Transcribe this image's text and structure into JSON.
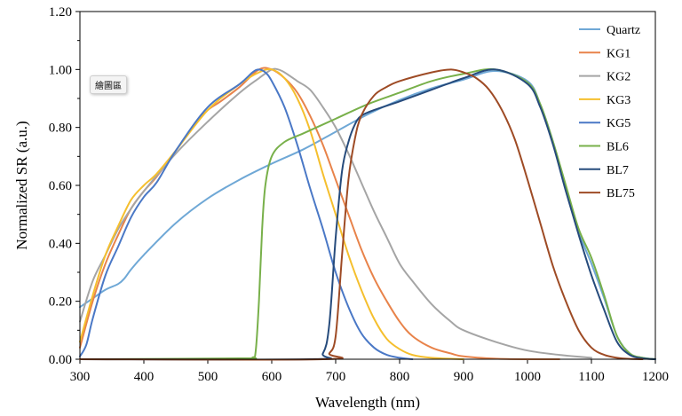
{
  "chart_data": {
    "type": "line",
    "title": "",
    "xlabel": "Wavelength (nm)",
    "ylabel": "Normalized SR (a.u.)",
    "xlim": [
      300,
      1200
    ],
    "ylim": [
      0,
      1.2
    ],
    "xticks": [
      300,
      400,
      500,
      600,
      700,
      800,
      900,
      1000,
      1100,
      1200
    ],
    "yticks": [
      "0.00",
      "0.20",
      "0.40",
      "0.60",
      "0.80",
      "1.00",
      "1.20"
    ],
    "legend_position": "top-right",
    "tag_label": "繪圖區",
    "series": [
      {
        "name": "Quartz",
        "color": "#6fa8d6",
        "x": [
          300,
          320,
          340,
          360,
          370,
          380,
          400,
          450,
          500,
          550,
          600,
          650,
          700,
          750,
          800,
          850,
          900,
          950,
          1000,
          1020,
          1040,
          1060,
          1080,
          1100,
          1120,
          1140,
          1160,
          1180,
          1200
        ],
        "y": [
          0.18,
          0.21,
          0.24,
          0.26,
          0.28,
          0.31,
          0.36,
          0.47,
          0.555,
          0.62,
          0.675,
          0.725,
          0.785,
          0.845,
          0.895,
          0.935,
          0.965,
          0.995,
          0.96,
          0.88,
          0.75,
          0.59,
          0.44,
          0.33,
          0.21,
          0.08,
          0.02,
          0.005,
          0.0
        ]
      },
      {
        "name": "KG1",
        "color": "#e8834a",
        "x": [
          300,
          320,
          340,
          360,
          380,
          400,
          420,
          450,
          480,
          500,
          520,
          550,
          580,
          600,
          620,
          640,
          660,
          680,
          700,
          720,
          740,
          760,
          780,
          800,
          820,
          850,
          880,
          900,
          950,
          1000,
          1050
        ],
        "y": [
          0.04,
          0.2,
          0.33,
          0.43,
          0.52,
          0.58,
          0.63,
          0.72,
          0.81,
          0.86,
          0.89,
          0.94,
          1.0,
          1.0,
          0.97,
          0.92,
          0.84,
          0.74,
          0.62,
          0.5,
          0.38,
          0.28,
          0.2,
          0.13,
          0.08,
          0.04,
          0.02,
          0.01,
          0.002,
          0.0,
          0.0
        ]
      },
      {
        "name": "KG2",
        "color": "#a5a5a5",
        "x": [
          300,
          320,
          340,
          360,
          380,
          400,
          450,
          500,
          550,
          580,
          600,
          610,
          620,
          640,
          660,
          680,
          700,
          720,
          740,
          760,
          780,
          800,
          820,
          850,
          880,
          900,
          950,
          1000,
          1050,
          1100
        ],
        "y": [
          0.13,
          0.27,
          0.36,
          0.45,
          0.52,
          0.58,
          0.71,
          0.82,
          0.92,
          0.97,
          1.0,
          1.0,
          0.99,
          0.96,
          0.93,
          0.87,
          0.8,
          0.71,
          0.61,
          0.51,
          0.42,
          0.33,
          0.27,
          0.19,
          0.13,
          0.1,
          0.06,
          0.03,
          0.015,
          0.005
        ]
      },
      {
        "name": "KG3",
        "color": "#f5bf2e",
        "x": [
          300,
          320,
          340,
          360,
          380,
          400,
          420,
          450,
          500,
          550,
          580,
          600,
          620,
          640,
          660,
          680,
          700,
          720,
          740,
          760,
          780,
          800,
          820,
          850,
          900
        ],
        "y": [
          0.06,
          0.22,
          0.36,
          0.46,
          0.55,
          0.6,
          0.64,
          0.72,
          0.86,
          0.95,
          0.99,
          1.0,
          0.97,
          0.9,
          0.79,
          0.64,
          0.5,
          0.36,
          0.24,
          0.14,
          0.07,
          0.035,
          0.015,
          0.005,
          0.0
        ]
      },
      {
        "name": "KG5",
        "color": "#4a78c6",
        "x": [
          300,
          310,
          320,
          340,
          360,
          380,
          400,
          420,
          450,
          500,
          550,
          570,
          580,
          590,
          600,
          620,
          640,
          660,
          680,
          700,
          720,
          740,
          760,
          780,
          800,
          820
        ],
        "y": [
          0.01,
          0.05,
          0.14,
          0.29,
          0.39,
          0.49,
          0.56,
          0.61,
          0.72,
          0.87,
          0.95,
          0.99,
          1.0,
          0.99,
          0.96,
          0.87,
          0.74,
          0.59,
          0.45,
          0.3,
          0.18,
          0.09,
          0.04,
          0.015,
          0.005,
          0.0
        ]
      },
      {
        "name": "BL6",
        "color": "#78b04a",
        "x": [
          300,
          550,
          570,
          575,
          580,
          585,
          590,
          600,
          620,
          650,
          700,
          750,
          800,
          850,
          900,
          950,
          1000,
          1020,
          1040,
          1060,
          1080,
          1100,
          1120,
          1140,
          1160,
          1180,
          1200
        ],
        "y": [
          0.0,
          0.003,
          0.006,
          0.03,
          0.2,
          0.45,
          0.6,
          0.7,
          0.75,
          0.78,
          0.83,
          0.88,
          0.92,
          0.96,
          0.985,
          1.0,
          0.955,
          0.88,
          0.75,
          0.6,
          0.45,
          0.35,
          0.22,
          0.08,
          0.02,
          0.005,
          0.0
        ]
      },
      {
        "name": "BL7",
        "color": "#264b7c",
        "x": [
          300,
          660,
          680,
          690,
          700,
          710,
          720,
          730,
          740,
          760,
          800,
          850,
          900,
          950,
          1000,
          1020,
          1040,
          1060,
          1080,
          1100,
          1120,
          1140,
          1160,
          1180,
          1200
        ],
        "y": [
          0.0,
          0.0,
          0.02,
          0.12,
          0.42,
          0.65,
          0.75,
          0.81,
          0.84,
          0.86,
          0.89,
          0.93,
          0.97,
          1.0,
          0.95,
          0.87,
          0.74,
          0.58,
          0.43,
          0.29,
          0.17,
          0.06,
          0.015,
          0.003,
          0.0
        ]
      },
      {
        "name": "BL75",
        "color": "#9e4b25",
        "x": [
          300,
          680,
          690,
          700,
          710,
          720,
          730,
          740,
          760,
          780,
          800,
          850,
          880,
          900,
          920,
          940,
          960,
          980,
          1000,
          1020,
          1040,
          1060,
          1080,
          1100,
          1120,
          1140,
          1160,
          1180
        ],
        "y": [
          0.0,
          0.0,
          0.02,
          0.08,
          0.36,
          0.62,
          0.76,
          0.84,
          0.91,
          0.94,
          0.96,
          0.99,
          1.0,
          0.99,
          0.97,
          0.93,
          0.86,
          0.76,
          0.62,
          0.47,
          0.32,
          0.2,
          0.1,
          0.04,
          0.015,
          0.005,
          0.001,
          0.0
        ]
      }
    ]
  }
}
